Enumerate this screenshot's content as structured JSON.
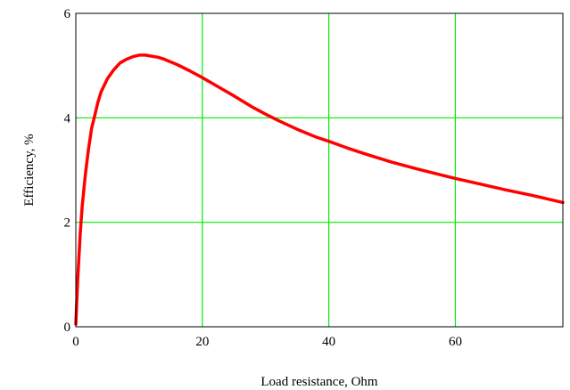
{
  "chart_data": {
    "type": "line",
    "title": "",
    "xlabel": "Load resistance, Ohm",
    "ylabel": "Efficiency, %",
    "xlim": [
      0,
      77
    ],
    "ylim": [
      0,
      6
    ],
    "xticks": [
      0,
      20,
      40,
      60
    ],
    "yticks": [
      0,
      2,
      4,
      6
    ],
    "xtick_labels": [
      "0",
      "20",
      "40",
      "60"
    ],
    "ytick_labels": [
      "0",
      "2",
      "4",
      "6"
    ],
    "grid": true,
    "grid_color": "#00ee00",
    "line_color": "#ff0000",
    "background_color": "#ffffff",
    "series": [
      {
        "x": [
          0,
          0.3,
          0.7,
          1.0,
          1.5,
          2.0,
          2.5,
          3.0,
          3.5,
          4.0,
          5.0,
          6.0,
          7.0,
          8.0,
          9.0,
          10.0,
          11.0,
          12.0,
          13.0,
          14.0,
          16.0,
          18.0,
          20.0,
          22.0,
          25.0,
          28.0,
          30.0,
          32.0,
          35.0,
          38.0,
          40.0,
          43.0,
          46.0,
          50.0,
          54.0,
          58.0,
          60.0,
          64.0,
          68.0,
          72.0,
          77.0
        ],
        "y": [
          0.05,
          0.9,
          1.8,
          2.3,
          2.9,
          3.4,
          3.8,
          4.05,
          4.3,
          4.5,
          4.75,
          4.92,
          5.05,
          5.12,
          5.17,
          5.2,
          5.2,
          5.18,
          5.16,
          5.12,
          5.02,
          4.9,
          4.77,
          4.63,
          4.42,
          4.2,
          4.07,
          3.95,
          3.78,
          3.63,
          3.55,
          3.42,
          3.3,
          3.15,
          3.02,
          2.9,
          2.84,
          2.73,
          2.62,
          2.52,
          2.38
        ]
      }
    ]
  }
}
